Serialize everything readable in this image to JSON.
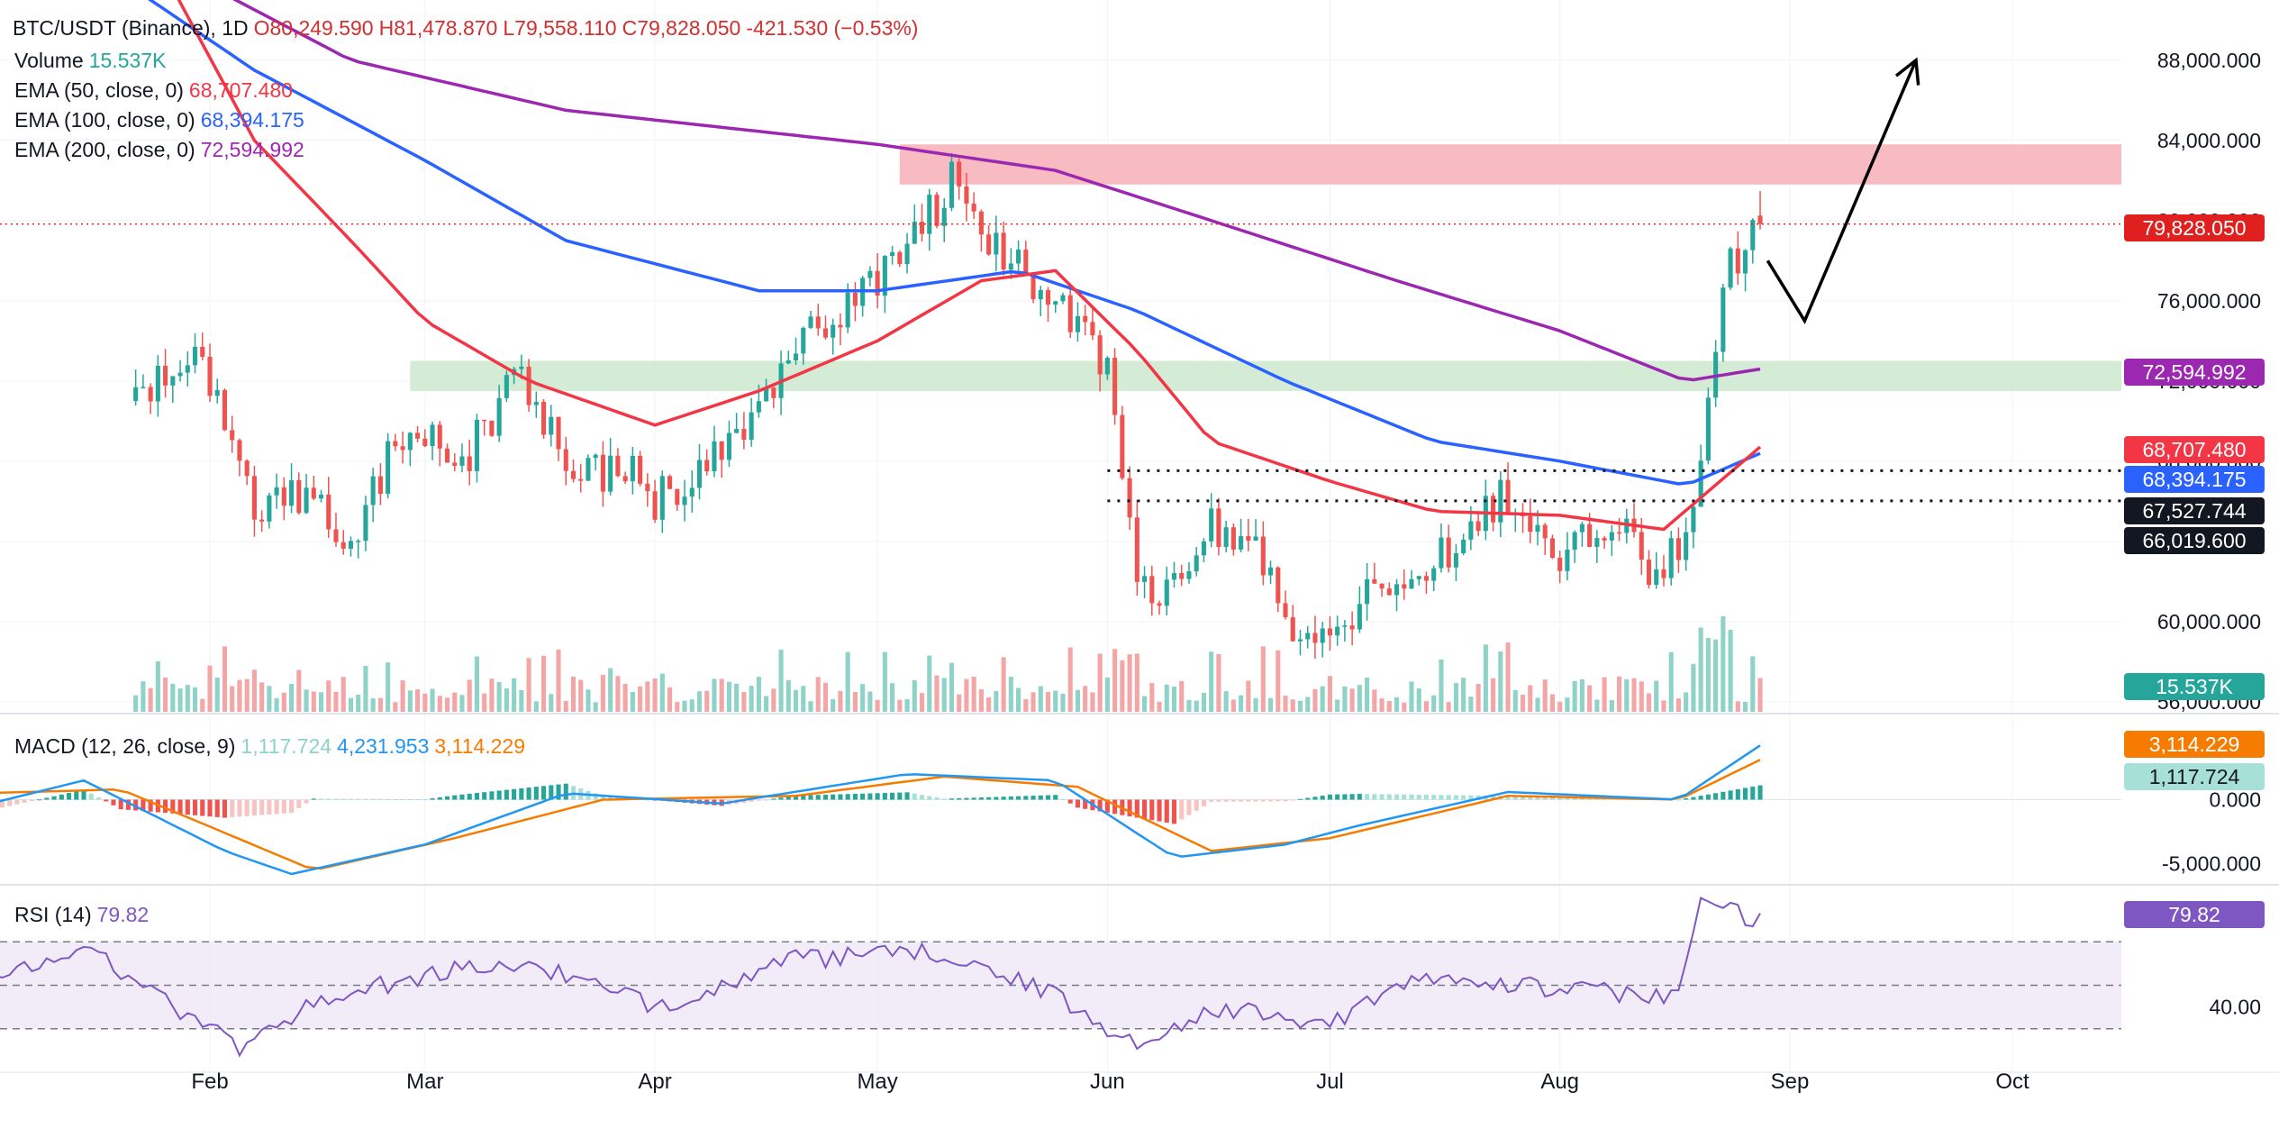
{
  "header": {
    "symbol": "BTC/USDT (Binance), 1D",
    "open_label": "O",
    "open": "80,249.590",
    "high_label": "H",
    "high": "81,478.870",
    "low_label": "L",
    "low": "79,558.110",
    "close_label": "C",
    "close": "79,828.050",
    "change": "-421.530 (−0.53%)"
  },
  "legend": {
    "volume_label": "Volume",
    "volume_value": "15.537K",
    "ema50_label": "EMA (50, close, 0)",
    "ema50_value": "68,707.480",
    "ema100_label": "EMA (100, close, 0)",
    "ema100_value": "68,394.175",
    "ema200_label": "EMA (200, close, 0)",
    "ema200_value": "72,594.992",
    "macd_label": "MACD (12, 26, close, 9)",
    "macd_hist": "1,117.724",
    "macd_line": "4,231.953",
    "macd_signal": "3,114.229",
    "rsi_label": "RSI (14)",
    "rsi_value": "79.82"
  },
  "badges": {
    "last_price": "79,828.050",
    "ema200": "72,594.992",
    "ema50": "68,707.480",
    "ema100": "68,394.175",
    "level_high": "67,527.744",
    "level_low": "66,019.600",
    "volume": "15.537K",
    "macd_signal": "3,114.229",
    "macd_hist": "1,117.724",
    "rsi": "79.82"
  },
  "colors": {
    "up": "#26a69a",
    "down": "#ef5350",
    "up_vol": "#8fd2c8",
    "down_vol": "#f4a6a6",
    "ema50": "#f23645",
    "ema100": "#2962ff",
    "ema200": "#9c27b0",
    "macd_line": "#2196f3",
    "macd_signal": "#f57c00",
    "rsi_line": "#7e57c2",
    "last_price": "#e01f1f"
  },
  "chart_data": [
    {
      "type": "candlestick",
      "title": "BTC/USDT (Binance), 1D",
      "x_labels": [
        "Feb",
        "Mar",
        "Apr",
        "May",
        "Jun",
        "Jul",
        "Aug",
        "Sep",
        "Oct"
      ],
      "y_ticks": [
        88000000,
        84000000,
        80000000,
        76000000,
        72000000,
        68000000,
        64000000,
        60000000,
        56000000
      ],
      "y_tick_labels": [
        "88,000.000",
        "84,000.000",
        "80,000.000",
        "76,000.000",
        "72,000.000",
        "68,000.000",
        "64,000.000",
        "60,000.000",
        "56,000.000"
      ],
      "ylim": [
        55500000,
        91000000
      ],
      "trend_path": [
        {
          "date": "2024-01-22",
          "close": 71000000
        },
        {
          "date": "2024-01-31",
          "close": 73000000
        },
        {
          "date": "2024-02-07",
          "close": 65500000
        },
        {
          "date": "2024-02-14",
          "close": 66200000
        },
        {
          "date": "2024-02-20",
          "close": 64000000
        },
        {
          "date": "2024-02-28",
          "close": 70300000
        },
        {
          "date": "2024-03-06",
          "close": 68000000
        },
        {
          "date": "2024-03-14",
          "close": 72700000
        },
        {
          "date": "2024-03-21",
          "close": 67000000
        },
        {
          "date": "2024-03-28",
          "close": 68000000
        },
        {
          "date": "2024-04-01",
          "close": 66000000
        },
        {
          "date": "2024-04-08",
          "close": 67500000
        },
        {
          "date": "2024-04-15",
          "close": 71000000
        },
        {
          "date": "2024-04-22",
          "close": 74500000
        },
        {
          "date": "2024-04-29",
          "close": 76500000
        },
        {
          "date": "2024-05-06",
          "close": 79000000
        },
        {
          "date": "2024-05-11",
          "close": 82000000
        },
        {
          "date": "2024-05-18",
          "close": 78000000
        },
        {
          "date": "2024-05-25",
          "close": 76500000
        },
        {
          "date": "2024-06-01",
          "close": 72500000
        },
        {
          "date": "2024-06-05",
          "close": 63000000
        },
        {
          "date": "2024-06-08",
          "close": 61000000
        },
        {
          "date": "2024-06-15",
          "close": 64800000
        },
        {
          "date": "2024-06-22",
          "close": 63000000
        },
        {
          "date": "2024-06-28",
          "close": 58500000
        },
        {
          "date": "2024-07-03",
          "close": 60000000
        },
        {
          "date": "2024-07-10",
          "close": 62500000
        },
        {
          "date": "2024-07-18",
          "close": 63500000
        },
        {
          "date": "2024-07-24",
          "close": 66500000
        },
        {
          "date": "2024-08-01",
          "close": 63500000
        },
        {
          "date": "2024-08-08",
          "close": 65000000
        },
        {
          "date": "2024-08-14",
          "close": 62500000
        },
        {
          "date": "2024-08-18",
          "close": 64000000
        },
        {
          "date": "2024-08-21",
          "close": 71500000
        },
        {
          "date": "2024-08-23",
          "close": 77500000
        },
        {
          "date": "2024-08-26",
          "close": 78500000
        },
        {
          "date": "2024-08-28",
          "close": 79800000
        }
      ],
      "ema50_path": [
        {
          "date": "2024-01-22",
          "value": 95000000
        },
        {
          "date": "2024-02-07",
          "value": 84000000
        },
        {
          "date": "2024-02-20",
          "value": 79000000
        },
        {
          "date": "2024-03-01",
          "value": 75000000
        },
        {
          "date": "2024-03-15",
          "value": 72000000
        },
        {
          "date": "2024-04-01",
          "value": 69800000
        },
        {
          "date": "2024-04-15",
          "value": 71500000
        },
        {
          "date": "2024-05-01",
          "value": 74000000
        },
        {
          "date": "2024-05-15",
          "value": 77000000
        },
        {
          "date": "2024-05-25",
          "value": 77500000
        },
        {
          "date": "2024-06-05",
          "value": 73500000
        },
        {
          "date": "2024-06-15",
          "value": 69000000
        },
        {
          "date": "2024-07-01",
          "value": 67000000
        },
        {
          "date": "2024-07-15",
          "value": 65500000
        },
        {
          "date": "2024-08-01",
          "value": 65300000
        },
        {
          "date": "2024-08-15",
          "value": 64600000
        },
        {
          "date": "2024-08-28",
          "value": 68707480
        }
      ],
      "ema100_path": [
        {
          "date": "2024-01-20",
          "value": 92000000
        },
        {
          "date": "2024-02-07",
          "value": 87500000
        },
        {
          "date": "2024-03-01",
          "value": 83000000
        },
        {
          "date": "2024-03-20",
          "value": 79000000
        },
        {
          "date": "2024-04-15",
          "value": 76500000
        },
        {
          "date": "2024-05-01",
          "value": 76500000
        },
        {
          "date": "2024-05-20",
          "value": 77500000
        },
        {
          "date": "2024-06-05",
          "value": 75500000
        },
        {
          "date": "2024-06-25",
          "value": 72000000
        },
        {
          "date": "2024-07-15",
          "value": 69000000
        },
        {
          "date": "2024-08-01",
          "value": 68000000
        },
        {
          "date": "2024-08-18",
          "value": 66800000
        },
        {
          "date": "2024-08-28",
          "value": 68394175
        }
      ],
      "ema200_path": [
        {
          "date": "2024-01-20",
          "value": 94000000
        },
        {
          "date": "2024-02-20",
          "value": 88000000
        },
        {
          "date": "2024-03-20",
          "value": 85500000
        },
        {
          "date": "2024-05-01",
          "value": 83800000
        },
        {
          "date": "2024-05-25",
          "value": 82500000
        },
        {
          "date": "2024-06-15",
          "value": 80000000
        },
        {
          "date": "2024-07-10",
          "value": 77000000
        },
        {
          "date": "2024-08-01",
          "value": 74500000
        },
        {
          "date": "2024-08-18",
          "value": 72000000
        },
        {
          "date": "2024-08-28",
          "value": 72594992
        }
      ],
      "zones": [
        {
          "kind": "resistance",
          "from_date": "2024-05-04",
          "to_date": "2024-10-25",
          "low": 81800000,
          "high": 83800000,
          "color": "#f8b4bb"
        },
        {
          "kind": "support",
          "from_date": "2024-02-28",
          "to_date": "2024-10-25",
          "low": 71500000,
          "high": 73000000,
          "color": "#cfe9d2"
        }
      ],
      "levels": [
        {
          "value": 67527744,
          "from_date": "2024-06-01",
          "style": "dotted",
          "color": "#131722"
        },
        {
          "value": 66019600,
          "from_date": "2024-06-01",
          "style": "dotted",
          "color": "#131722"
        },
        {
          "value": 79828050,
          "from_date": "2024-01-01",
          "style": "dotted",
          "color": "#e01f1f"
        }
      ],
      "projection": [
        {
          "date": "2024-08-29",
          "close": 78000000
        },
        {
          "date": "2024-09-03",
          "close": 75000000
        },
        {
          "date": "2024-09-18",
          "close": 88000000
        }
      ]
    },
    {
      "type": "bar",
      "title": "Volume",
      "series": [
        {
          "name": "Volume",
          "last": 15537
        }
      ]
    },
    {
      "type": "line",
      "title": "MACD (12, 26, close, 9)",
      "y_ticks": [
        0,
        -5000000
      ],
      "y_tick_labels": [
        "0.000",
        "-5,000.000"
      ],
      "ylim": [
        -6500000,
        6500000
      ],
      "macd_path": [
        {
          "date": "2024-01-01",
          "value": -500000
        },
        {
          "date": "2024-01-15",
          "value": 1500000
        },
        {
          "date": "2024-02-03",
          "value": -4000000
        },
        {
          "date": "2024-02-12",
          "value": -5800000
        },
        {
          "date": "2024-03-01",
          "value": -3500000
        },
        {
          "date": "2024-03-20",
          "value": 500000
        },
        {
          "date": "2024-04-10",
          "value": -300000
        },
        {
          "date": "2024-05-05",
          "value": 2000000
        },
        {
          "date": "2024-05-25",
          "value": 1500000
        },
        {
          "date": "2024-06-10",
          "value": -4500000
        },
        {
          "date": "2024-06-25",
          "value": -3500000
        },
        {
          "date": "2024-07-05",
          "value": -2000000
        },
        {
          "date": "2024-07-25",
          "value": 600000
        },
        {
          "date": "2024-08-17",
          "value": 0
        },
        {
          "date": "2024-08-28",
          "value": 4231953
        }
      ],
      "signal_path": [
        {
          "date": "2024-01-01",
          "value": 500000
        },
        {
          "date": "2024-01-20",
          "value": 800000
        },
        {
          "date": "2024-02-15",
          "value": -5500000
        },
        {
          "date": "2024-03-05",
          "value": -3000000
        },
        {
          "date": "2024-03-25",
          "value": 0
        },
        {
          "date": "2024-04-20",
          "value": 300000
        },
        {
          "date": "2024-05-10",
          "value": 1800000
        },
        {
          "date": "2024-05-28",
          "value": 1000000
        },
        {
          "date": "2024-06-15",
          "value": -4000000
        },
        {
          "date": "2024-07-01",
          "value": -3000000
        },
        {
          "date": "2024-07-25",
          "value": 300000
        },
        {
          "date": "2024-08-17",
          "value": 0
        },
        {
          "date": "2024-08-28",
          "value": 3114229
        }
      ],
      "hist_last": 1117724
    },
    {
      "type": "line",
      "title": "RSI (14)",
      "y_ticks": [
        40
      ],
      "y_tick_labels": [
        "40.00"
      ],
      "bands": [
        70,
        50,
        30
      ],
      "ylim": [
        10,
        95
      ],
      "rsi_path": [
        {
          "date": "2024-01-01",
          "value": 52
        },
        {
          "date": "2024-01-15",
          "value": 68
        },
        {
          "date": "2024-01-25",
          "value": 45
        },
        {
          "date": "2024-02-05",
          "value": 22
        },
        {
          "date": "2024-02-15",
          "value": 42
        },
        {
          "date": "2024-03-01",
          "value": 55
        },
        {
          "date": "2024-03-15",
          "value": 60
        },
        {
          "date": "2024-04-01",
          "value": 40
        },
        {
          "date": "2024-04-20",
          "value": 62
        },
        {
          "date": "2024-05-10",
          "value": 65
        },
        {
          "date": "2024-05-25",
          "value": 45
        },
        {
          "date": "2024-06-05",
          "value": 22
        },
        {
          "date": "2024-06-15",
          "value": 40
        },
        {
          "date": "2024-06-30",
          "value": 32
        },
        {
          "date": "2024-07-15",
          "value": 55
        },
        {
          "date": "2024-08-01",
          "value": 48
        },
        {
          "date": "2024-08-17",
          "value": 45
        },
        {
          "date": "2024-08-20",
          "value": 88
        },
        {
          "date": "2024-08-28",
          "value": 79.82
        }
      ]
    }
  ]
}
